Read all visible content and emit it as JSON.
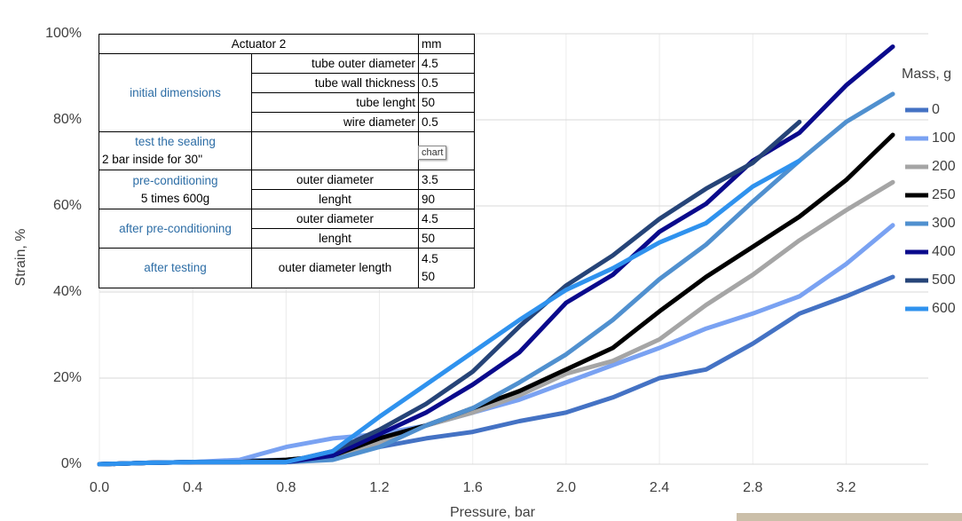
{
  "chart_data": {
    "type": "line",
    "x_label": "Pressure, bar",
    "y_label": "Strain, %",
    "legend_title": "Mass, g",
    "x": [
      0,
      0.2,
      0.4,
      0.6,
      0.8,
      1.0,
      1.2,
      1.4,
      1.6,
      1.8,
      2.0,
      2.2,
      2.4,
      2.6,
      2.8,
      3.0,
      3.2,
      3.4
    ],
    "series": [
      {
        "name": "0",
        "color": "#4472c4",
        "values": [
          0,
          0.3,
          0.5,
          0.8,
          1,
          2,
          4,
          6,
          7.5,
          10,
          12,
          15.5,
          20,
          22,
          28,
          35,
          39,
          43.5
        ]
      },
      {
        "name": "100",
        "color": "#7aa2f2",
        "values": [
          0,
          0.3,
          0.5,
          1,
          4,
          6,
          7,
          9,
          12,
          15,
          19,
          23,
          27,
          31.5,
          35,
          39,
          46.5,
          55.5
        ]
      },
      {
        "name": "200",
        "color": "#a5a5a5",
        "values": [
          0,
          0.3,
          0.5,
          0.5,
          1,
          2,
          5,
          9,
          12,
          16,
          21,
          24,
          29,
          37,
          44,
          52,
          59,
          65.5
        ]
      },
      {
        "name": "250",
        "color": "#000000",
        "values": [
          0,
          0.3,
          0.5,
          0.5,
          1,
          2,
          6,
          9,
          13,
          17,
          22,
          27,
          35.5,
          43.5,
          50.5,
          57.5,
          66,
          76.5
        ]
      },
      {
        "name": "300",
        "color": "#5090cf",
        "values": [
          0,
          0.3,
          0.5,
          0.5,
          0.5,
          1,
          4,
          9,
          13,
          19,
          25.5,
          33.5,
          43,
          51,
          61,
          70.5,
          79.5,
          86
        ]
      },
      {
        "name": "400",
        "color": "#0a0a8c",
        "values": [
          0,
          0.3,
          0.5,
          0.5,
          0.5,
          2,
          7,
          12,
          18.5,
          26,
          37.5,
          44,
          54,
          60.5,
          70.5,
          77,
          88,
          97
        ]
      },
      {
        "name": "500",
        "color": "#264478",
        "values": [
          0,
          0.3,
          0.5,
          0.5,
          0.5,
          3,
          8,
          14,
          21.5,
          32,
          41.5,
          48.5,
          57,
          64,
          70,
          79.5,
          null,
          null
        ]
      },
      {
        "name": "600",
        "color": "#2f92ee",
        "values": [
          0,
          0.3,
          0.5,
          0.5,
          0.5,
          3,
          11,
          18.5,
          26,
          33.5,
          40.5,
          45.5,
          51.5,
          56,
          64.5,
          70.5,
          null,
          null
        ]
      }
    ],
    "xlim": [
      0,
      3.4
    ],
    "xticks": [
      {
        "value": 0,
        "label": "0.0"
      },
      0.4,
      0.8,
      1.2,
      1.6,
      {
        "value": 2,
        "label": "2.0"
      },
      2.4,
      2.8,
      3.2
    ],
    "ylim": [
      0,
      100
    ],
    "yticks": [
      {
        "value": 0,
        "label": "0%"
      },
      {
        "value": 20,
        "label": "20%"
      },
      {
        "value": 40,
        "label": "40%"
      },
      {
        "value": 60,
        "label": "60%"
      },
      {
        "value": 80,
        "label": "80%"
      },
      {
        "value": 100,
        "label": "100%"
      }
    ],
    "grid": true
  },
  "table": {
    "header": [
      "Actuator 2",
      "mm"
    ],
    "initial": {
      "label": "initial dimensions",
      "rows": [
        [
          "tube outer diameter",
          "4.5"
        ],
        [
          "tube wall thickness",
          "0.5"
        ],
        [
          "tube lenght",
          "50"
        ],
        [
          "wire diameter",
          "0.5"
        ]
      ]
    },
    "sealing": {
      "label": [
        "test the sealing",
        "2 bar inside for 30''"
      ],
      "tag": "chart"
    },
    "pre": {
      "label": [
        "pre-conditioning",
        "5 times 600g"
      ],
      "rows": [
        [
          "outer diameter",
          "3.5"
        ],
        [
          "lenght",
          "90"
        ]
      ]
    },
    "after_pre": {
      "label": "after pre-conditioning",
      "rows": [
        [
          "outer diameter",
          "4.5"
        ],
        [
          "lenght",
          "50"
        ]
      ]
    },
    "after_test": {
      "label": "after testing",
      "param": "outer diameter length",
      "values": [
        "4.5",
        "50"
      ]
    }
  }
}
